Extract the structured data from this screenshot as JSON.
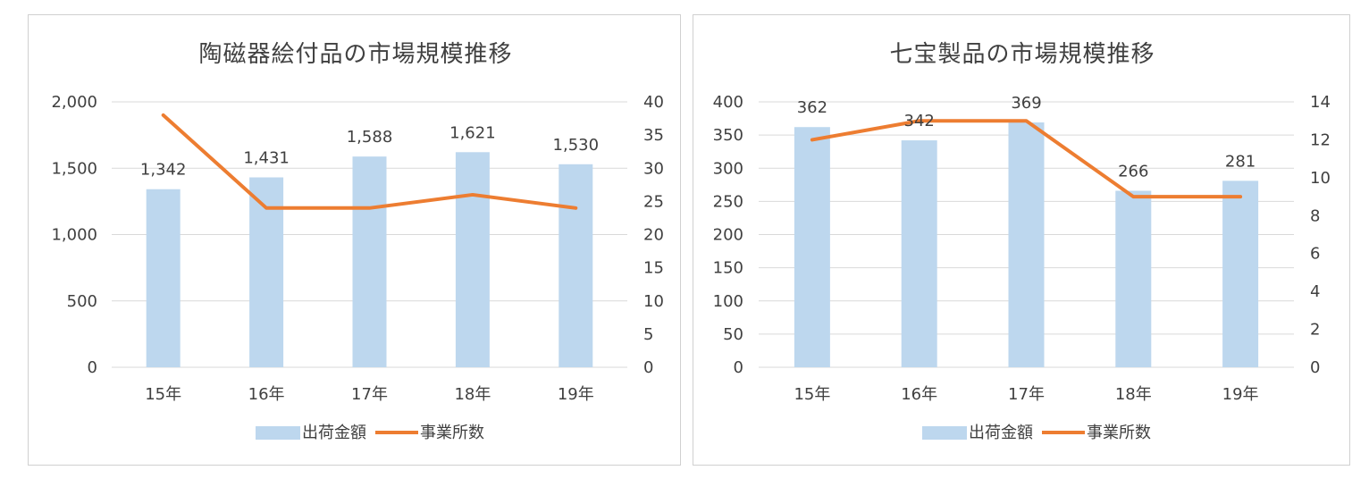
{
  "chart_data": [
    {
      "type": "bar",
      "title": "陶磁器絵付品の市場規模推移",
      "categories": [
        "15年",
        "16年",
        "17年",
        "18年",
        "19年"
      ],
      "series": [
        {
          "name": "出荷金額",
          "type": "bar",
          "axis": "left",
          "values": [
            1342,
            1431,
            1588,
            1621,
            1530
          ],
          "labels": [
            "1,342",
            "1,431",
            "1,588",
            "1,621",
            "1,530"
          ],
          "color": "#bdd7ee"
        },
        {
          "name": "事業所数",
          "type": "line",
          "axis": "right",
          "values": [
            38,
            24,
            24,
            26,
            24
          ],
          "color": "#ed7d31"
        }
      ],
      "ylim_left": [
        0,
        2000
      ],
      "yticks_left": [
        0,
        500,
        1000,
        1500,
        2000
      ],
      "yticklabels_left": [
        "0",
        "500",
        "1,000",
        "1,500",
        "2,000"
      ],
      "ylim_right": [
        0,
        40
      ],
      "yticks_right": [
        0,
        5,
        10,
        15,
        20,
        25,
        30,
        35,
        40
      ],
      "yticklabels_right": [
        "0",
        "5",
        "10",
        "15",
        "20",
        "25",
        "30",
        "35",
        "40"
      ],
      "grid": true,
      "legend": "bottom"
    },
    {
      "type": "bar",
      "title": "七宝製品の市場規模推移",
      "categories": [
        "15年",
        "16年",
        "17年",
        "18年",
        "19年"
      ],
      "series": [
        {
          "name": "出荷金額",
          "type": "bar",
          "axis": "left",
          "values": [
            362,
            342,
            369,
            266,
            281
          ],
          "labels": [
            "362",
            "342",
            "369",
            "266",
            "281"
          ],
          "color": "#bdd7ee"
        },
        {
          "name": "事業所数",
          "type": "line",
          "axis": "right",
          "values": [
            12,
            13,
            13,
            9,
            9
          ],
          "color": "#ed7d31"
        }
      ],
      "ylim_left": [
        0,
        400
      ],
      "yticks_left": [
        0,
        50,
        100,
        150,
        200,
        250,
        300,
        350,
        400
      ],
      "yticklabels_left": [
        "0",
        "50",
        "100",
        "150",
        "200",
        "250",
        "300",
        "350",
        "400"
      ],
      "ylim_right": [
        0,
        14
      ],
      "yticks_right": [
        0,
        2,
        4,
        6,
        8,
        10,
        12,
        14
      ],
      "yticklabels_right": [
        "0",
        "2",
        "4",
        "6",
        "8",
        "10",
        "12",
        "14"
      ],
      "grid": true,
      "legend": "bottom"
    }
  ]
}
